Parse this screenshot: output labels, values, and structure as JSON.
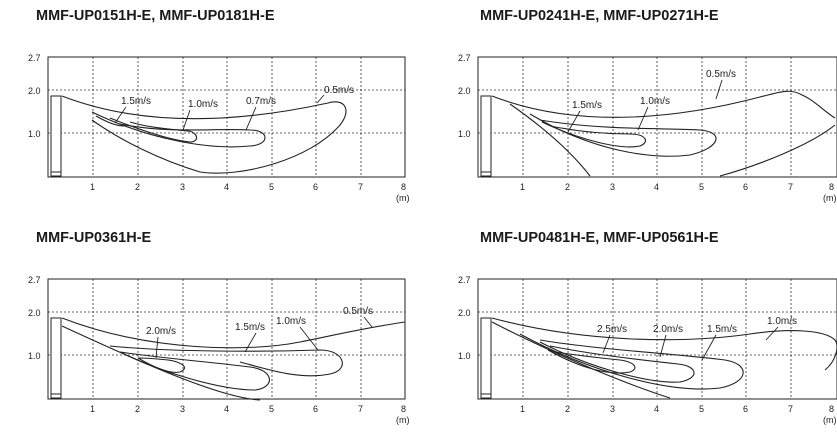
{
  "panels": [
    {
      "id": "p1",
      "title": "MMF-UP0151H-E, MMF-UP0181H-E",
      "y_ticks": [
        "2.7",
        "2.0",
        "1.0"
      ],
      "x_ticks": [
        "1",
        "2",
        "3",
        "4",
        "5",
        "6",
        "7",
        "8"
      ],
      "x_unit": "(m)",
      "speeds": [
        "1.5m/s",
        "1.0m/s",
        "0.7m/s",
        "0.5m/s"
      ]
    },
    {
      "id": "p2",
      "title": "MMF-UP0241H-E, MMF-UP0271H-E",
      "y_ticks": [
        "2.7",
        "2.0",
        "1.0"
      ],
      "x_ticks": [
        "1",
        "2",
        "3",
        "4",
        "5",
        "6",
        "7",
        "8"
      ],
      "x_unit": "(m)",
      "speeds": [
        "1.5m/s",
        "1.0m/s",
        "0.5m/s"
      ]
    },
    {
      "id": "p3",
      "title": "MMF-UP0361H-E",
      "y_ticks": [
        "2.7",
        "2.0",
        "1.0"
      ],
      "x_ticks": [
        "1",
        "2",
        "3",
        "4",
        "5",
        "6",
        "7",
        "8"
      ],
      "x_unit": "(m)",
      "speeds": [
        "2.0m/s",
        "1.5m/s",
        "1.0m/s",
        "0.5m/s"
      ]
    },
    {
      "id": "p4",
      "title": "MMF-UP0481H-E, MMF-UP0561H-E",
      "y_ticks": [
        "2.7",
        "2.0",
        "1.0"
      ],
      "x_ticks": [
        "1",
        "2",
        "3",
        "4",
        "5",
        "6",
        "7",
        "8"
      ],
      "x_unit": "(m)",
      "speeds": [
        "2.5m/s",
        "2.0m/s",
        "1.5m/s",
        "1.0m/s"
      ]
    }
  ]
}
